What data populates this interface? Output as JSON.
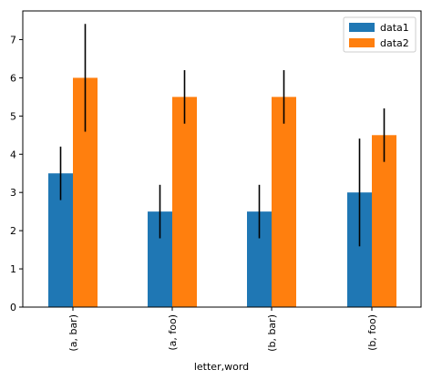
{
  "chart_data": {
    "type": "bar",
    "title": "",
    "xlabel": "letter,word",
    "ylabel": "",
    "ylim": [
      0,
      7.75
    ],
    "yticks": [
      0,
      1,
      2,
      3,
      4,
      5,
      6,
      7
    ],
    "categories": [
      "(a, bar)",
      "(a, foo)",
      "(b, bar)",
      "(b, foo)"
    ],
    "series": [
      {
        "name": "data1",
        "color": "#1f77b4",
        "values": [
          3.5,
          2.5,
          2.5,
          3.0
        ],
        "errors": [
          0.7,
          0.7,
          0.7,
          1.41
        ]
      },
      {
        "name": "data2",
        "color": "#ff7f0e",
        "values": [
          6.0,
          5.5,
          5.5,
          4.5
        ],
        "errors": [
          1.41,
          0.7,
          0.7,
          0.7
        ]
      }
    ],
    "legend": {
      "position": "top-right"
    },
    "grid": false
  }
}
